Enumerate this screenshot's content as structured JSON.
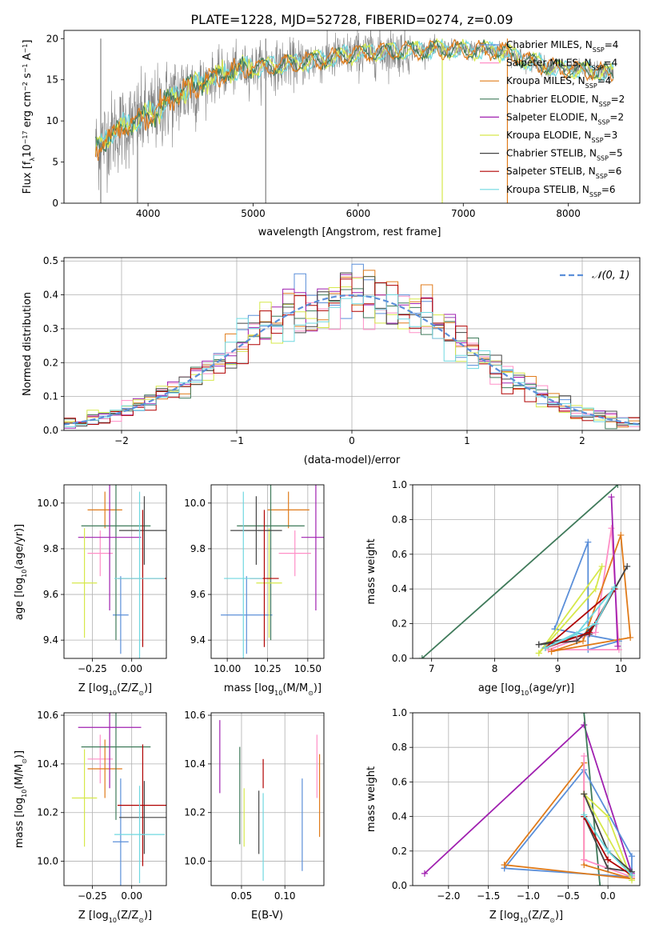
{
  "title": "PLATE=1228, MJD=52728, FIBERID=0274, z=0.09",
  "colors": {
    "chabrier_miles": "#5b8fd9",
    "salpeter_miles": "#ff8fc7",
    "kroupa_miles": "#e07b1a",
    "chabrier_elodie": "#3f7a5a",
    "salpeter_elodie": "#a020b0",
    "kroupa_elodie": "#d6e84a",
    "chabrier_stelib": "#444444",
    "salpeter_stelib": "#b00000",
    "kroupa_stelib": "#6fd8e0",
    "data": "#808080",
    "normal": "#5b8fd9",
    "grid": "#b0b0b0"
  },
  "chart_data": [
    {
      "type": "line",
      "xlabel": "wavelength [Angstrom, rest frame]",
      "ylabel": "Flux [f_λ10^-17 erg cm^-2 s^-1 A^-1]",
      "xlim": [
        3200,
        8680
      ],
      "ylim": [
        0,
        21
      ],
      "xticks": [
        4000,
        5000,
        6000,
        7000,
        8000
      ],
      "yticks": [
        0,
        5,
        10,
        15,
        20
      ],
      "grid": false,
      "legend_position": "upper-right",
      "legend": [
        "Chabrier MILES, N_SSP=4",
        "Salpeter MILES, N_SSP=4",
        "Kroupa MILES, N_SSP=4",
        "Chabrier ELODIE, N_SSP=2",
        "Salpeter ELODIE, N_SSP=2",
        "Kroupa ELODIE, N_SSP=3",
        "Chabrier STELIB, N_SSP=5",
        "Salpeter STELIB, N_SSP=6",
        "Kroupa STELIB, N_SSP=6"
      ],
      "continuum": [
        [
          3500,
          6.5
        ],
        [
          3600,
          8.0
        ],
        [
          3800,
          9.5
        ],
        [
          4000,
          10.5
        ],
        [
          4200,
          12.5
        ],
        [
          4400,
          14.0
        ],
        [
          4600,
          15.2
        ],
        [
          4800,
          16.0
        ],
        [
          5000,
          16.5
        ],
        [
          5200,
          16.7
        ],
        [
          5400,
          17.0
        ],
        [
          5600,
          17.4
        ],
        [
          5800,
          17.8
        ],
        [
          6000,
          18.2
        ],
        [
          6200,
          18.4
        ],
        [
          6400,
          18.5
        ],
        [
          6600,
          18.6
        ],
        [
          6800,
          18.7
        ],
        [
          7000,
          18.6
        ],
        [
          7200,
          18.6
        ],
        [
          7400,
          18.4
        ],
        [
          7600,
          17.4
        ],
        [
          7800,
          16.6
        ],
        [
          8000,
          16.3
        ],
        [
          8200,
          16.1
        ],
        [
          8400,
          15.8
        ]
      ]
    },
    {
      "type": "histogram",
      "xlabel": "(data-model)/error",
      "ylabel": "Normed distribution",
      "xlim": [
        -2.5,
        2.5
      ],
      "ylim": [
        0,
        0.51
      ],
      "xticks": [
        -2,
        -1,
        0,
        1,
        2
      ],
      "yticks": [
        0.0,
        0.1,
        0.2,
        0.3,
        0.4,
        0.5
      ],
      "grid": true,
      "legend_position": "upper-right",
      "legend": [
        "N(0,1)"
      ],
      "bin_width": 0.1
    },
    {
      "type": "scatter",
      "xlabel": "Z [log10(Z/Z⊙)]",
      "ylabel": "age [log10(age/yr)]",
      "xlim": [
        -0.43,
        0.22
      ],
      "ylim": [
        9.32,
        10.08
      ],
      "xticks": [
        -0.25,
        0.0
      ],
      "yticks": [
        9.4,
        9.6,
        9.8,
        10.0
      ],
      "points": [
        {
          "s": "chabrier_miles",
          "x": -0.07,
          "xe": 0.05,
          "y": 9.51,
          "ye": 0.17
        },
        {
          "s": "salpeter_miles",
          "x": -0.2,
          "xe": 0.08,
          "y": 9.78,
          "ye": 0.1
        },
        {
          "s": "kroupa_miles",
          "x": -0.17,
          "xe": 0.11,
          "y": 9.97,
          "ye": 0.08
        },
        {
          "s": "chabrier_elodie",
          "x": -0.1,
          "xe": 0.22,
          "y": 9.9,
          "ye": 0.5
        },
        {
          "s": "salpeter_elodie",
          "x": -0.14,
          "xe": 0.2,
          "y": 9.85,
          "ye": 0.32
        },
        {
          "s": "kroupa_elodie",
          "x": -0.3,
          "xe": 0.08,
          "y": 9.65,
          "ye": 0.24
        },
        {
          "s": "chabrier_stelib",
          "x": 0.08,
          "xe": 0.16,
          "y": 9.88,
          "ye": 0.15
        },
        {
          "s": "salpeter_stelib",
          "x": 0.07,
          "xe": 0.16,
          "y": 9.67,
          "ye": 0.3
        },
        {
          "s": "kroupa_stelib",
          "x": 0.05,
          "xe": 0.16,
          "y": 9.67,
          "ye": 0.38
        }
      ]
    },
    {
      "type": "scatter",
      "xlabel": "mass [log10(M/M⊙)]",
      "ylabel": "",
      "xlim": [
        9.9,
        10.6
      ],
      "ylim": [
        9.32,
        10.08
      ],
      "xticks": [
        10.0,
        10.25,
        10.5
      ],
      "yticks": [
        9.4,
        9.6,
        9.8,
        10.0
      ],
      "points": [
        {
          "s": "chabrier_miles",
          "x": 10.12,
          "xe": 0.16,
          "y": 9.51,
          "ye": 0.17
        },
        {
          "s": "salpeter_miles",
          "x": 10.42,
          "xe": 0.1,
          "y": 9.78,
          "ye": 0.1
        },
        {
          "s": "kroupa_miles",
          "x": 10.38,
          "xe": 0.13,
          "y": 9.97,
          "ye": 0.08
        },
        {
          "s": "chabrier_elodie",
          "x": 10.27,
          "xe": 0.21,
          "y": 9.9,
          "ye": 0.5
        },
        {
          "s": "salpeter_elodie",
          "x": 10.55,
          "xe": 0.09,
          "y": 9.85,
          "ye": 0.32
        },
        {
          "s": "kroupa_elodie",
          "x": 10.26,
          "xe": 0.08,
          "y": 9.65,
          "ye": 0.24
        },
        {
          "s": "chabrier_stelib",
          "x": 10.18,
          "xe": 0.16,
          "y": 9.88,
          "ye": 0.15
        },
        {
          "s": "salpeter_stelib",
          "x": 10.23,
          "xe": 0.09,
          "y": 9.67,
          "ye": 0.3
        },
        {
          "s": "kroupa_stelib",
          "x": 10.1,
          "xe": 0.12,
          "y": 9.67,
          "ye": 0.38
        }
      ]
    },
    {
      "type": "line",
      "xlabel": "age [log10(age/yr)]",
      "ylabel": "mass weight",
      "xlim": [
        6.7,
        10.3
      ],
      "ylim": [
        0,
        1
      ],
      "xticks": [
        7,
        8,
        9,
        10
      ],
      "yticks": [
        0.0,
        0.2,
        0.4,
        0.6,
        0.8,
        1.0
      ],
      "grid": true,
      "series": [
        {
          "s": "chabrier_elodie",
          "x": [
            6.85,
            9.95
          ],
          "y": [
            0.0,
            1.0
          ]
        },
        {
          "s": "chabrier_miles",
          "x": [
            8.95,
            9.48,
            9.48,
            9.97,
            8.95
          ],
          "y": [
            0.17,
            0.67,
            0.05,
            0.1,
            0.17
          ]
        },
        {
          "s": "salpeter_miles",
          "x": [
            8.85,
            9.6,
            9.85,
            9.97,
            8.85
          ],
          "y": [
            0.05,
            0.15,
            0.75,
            0.05,
            0.05
          ]
        },
        {
          "s": "kroupa_miles",
          "x": [
            8.9,
            9.4,
            10.0,
            10.15,
            8.9
          ],
          "y": [
            0.04,
            0.1,
            0.71,
            0.12,
            0.04
          ]
        },
        {
          "s": "salpeter_elodie",
          "x": [
            9.85,
            9.95
          ],
          "y": [
            0.93,
            0.07
          ]
        },
        {
          "s": "kroupa_elodie",
          "x": [
            8.7,
            9.7,
            9.6,
            8.7
          ],
          "y": [
            0.03,
            0.53,
            0.4,
            0.03
          ]
        },
        {
          "s": "chabrier_stelib",
          "x": [
            8.7,
            9.3,
            9.6,
            10.1,
            9.9,
            9.5,
            8.7
          ],
          "y": [
            0.08,
            0.1,
            0.2,
            0.53,
            0.4,
            0.14,
            0.08
          ]
        },
        {
          "s": "salpeter_stelib",
          "x": [
            8.8,
            9.5,
            9.9,
            8.8
          ],
          "y": [
            0.06,
            0.15,
            0.4,
            0.06
          ]
        },
        {
          "s": "kroupa_stelib",
          "x": [
            8.8,
            9.3,
            9.9,
            9.6,
            8.8
          ],
          "y": [
            0.06,
            0.14,
            0.41,
            0.2,
            0.06
          ]
        }
      ]
    },
    {
      "type": "scatter",
      "xlabel": "Z [log10(Z/Z⊙)]",
      "ylabel": "mass [log10(M/M⊙)]",
      "xlim": [
        -0.43,
        0.22
      ],
      "ylim": [
        9.9,
        10.61
      ],
      "xticks": [
        -0.25,
        0.0
      ],
      "yticks": [
        10.0,
        10.2,
        10.4,
        10.6
      ],
      "points": [
        {
          "s": "chabrier_miles",
          "x": -0.07,
          "xe": 0.05,
          "y": 10.08,
          "ye": 0.26
        },
        {
          "s": "salpeter_miles",
          "x": -0.2,
          "xe": 0.08,
          "y": 10.42,
          "ye": 0.1
        },
        {
          "s": "kroupa_miles",
          "x": -0.17,
          "xe": 0.11,
          "y": 10.38,
          "ye": 0.12
        },
        {
          "s": "chabrier_elodie",
          "x": -0.1,
          "xe": 0.22,
          "y": 10.47,
          "ye": 0.3
        },
        {
          "s": "salpeter_elodie",
          "x": -0.14,
          "xe": 0.2,
          "y": 10.55,
          "ye": 0.25
        },
        {
          "s": "kroupa_elodie",
          "x": -0.3,
          "xe": 0.08,
          "y": 10.26,
          "ye": 0.2
        },
        {
          "s": "chabrier_stelib",
          "x": 0.08,
          "xe": 0.16,
          "y": 10.18,
          "ye": 0.15
        },
        {
          "s": "salpeter_stelib",
          "x": 0.07,
          "xe": 0.16,
          "y": 10.23,
          "ye": 0.25
        },
        {
          "s": "kroupa_stelib",
          "x": 0.05,
          "xe": 0.16,
          "y": 10.11,
          "ye": 0.2
        }
      ]
    },
    {
      "type": "scatter",
      "xlabel": "E(B-V)",
      "ylabel": "",
      "xlim": [
        0.015,
        0.145
      ],
      "ylim": [
        9.9,
        10.61
      ],
      "xticks": [
        0.05,
        0.1
      ],
      "yticks": [
        10.0,
        10.2,
        10.4,
        10.6
      ],
      "points": [
        {
          "s": "chabrier_miles",
          "x": 0.12,
          "y": 10.15,
          "ye": 0.19
        },
        {
          "s": "salpeter_miles",
          "x": 0.137,
          "y": 10.39,
          "ye": 0.13
        },
        {
          "s": "kroupa_miles",
          "x": 0.14,
          "y": 10.27,
          "ye": 0.17
        },
        {
          "s": "chabrier_elodie",
          "x": 0.048,
          "y": 10.27,
          "ye": 0.2
        },
        {
          "s": "salpeter_elodie",
          "x": 0.025,
          "y": 10.43,
          "ye": 0.15
        },
        {
          "s": "kroupa_elodie",
          "x": 0.053,
          "y": 10.18,
          "ye": 0.12
        },
        {
          "s": "chabrier_stelib",
          "x": 0.07,
          "y": 10.16,
          "ye": 0.13
        },
        {
          "s": "salpeter_stelib",
          "x": 0.075,
          "y": 10.36,
          "ye": 0.06
        },
        {
          "s": "kroupa_stelib",
          "x": 0.075,
          "y": 10.1,
          "ye": 0.18
        }
      ]
    },
    {
      "type": "line",
      "xlabel": "Z [log10(Z/Z⊙)]",
      "ylabel": "mass weight",
      "xlim": [
        -2.45,
        0.4
      ],
      "ylim": [
        0,
        1
      ],
      "xticks": [
        -2.0,
        -1.5,
        -1.0,
        -0.5,
        0.0
      ],
      "yticks": [
        0.0,
        0.2,
        0.4,
        0.6,
        0.8,
        1.0
      ],
      "grid": true,
      "series": [
        {
          "s": "salpeter_elodie",
          "x": [
            -2.3,
            -0.3,
            0.3
          ],
          "y": [
            0.07,
            0.93,
            0.07
          ]
        },
        {
          "s": "chabrier_elodie",
          "x": [
            -0.3,
            -0.1
          ],
          "y": [
            1.0,
            0.0
          ]
        },
        {
          "s": "chabrier_miles",
          "x": [
            -1.3,
            -0.3,
            0.3,
            0.3,
            -1.3
          ],
          "y": [
            0.1,
            0.67,
            0.17,
            0.05,
            0.1
          ]
        },
        {
          "s": "kroupa_miles",
          "x": [
            -1.3,
            -0.3,
            -0.3,
            0.3,
            -1.3
          ],
          "y": [
            0.12,
            0.71,
            0.12,
            0.04,
            0.12
          ]
        },
        {
          "s": "salpeter_miles",
          "x": [
            -0.3,
            -0.3,
            0.3,
            0.3
          ],
          "y": [
            0.75,
            0.15,
            0.05,
            0.05
          ]
        },
        {
          "s": "kroupa_elodie",
          "x": [
            -0.3,
            0.0,
            0.3,
            -0.3
          ],
          "y": [
            0.53,
            0.4,
            0.03,
            0.53
          ]
        },
        {
          "s": "chabrier_stelib",
          "x": [
            -0.3,
            0.0,
            0.3,
            0.0,
            -0.3
          ],
          "y": [
            0.53,
            0.2,
            0.08,
            0.1,
            0.4
          ]
        },
        {
          "s": "salpeter_stelib",
          "x": [
            -0.3,
            0.0,
            0.3
          ],
          "y": [
            0.4,
            0.15,
            0.06
          ]
        },
        {
          "s": "kroupa_stelib",
          "x": [
            -0.3,
            0.0,
            0.3
          ],
          "y": [
            0.41,
            0.2,
            0.06
          ]
        }
      ]
    }
  ]
}
